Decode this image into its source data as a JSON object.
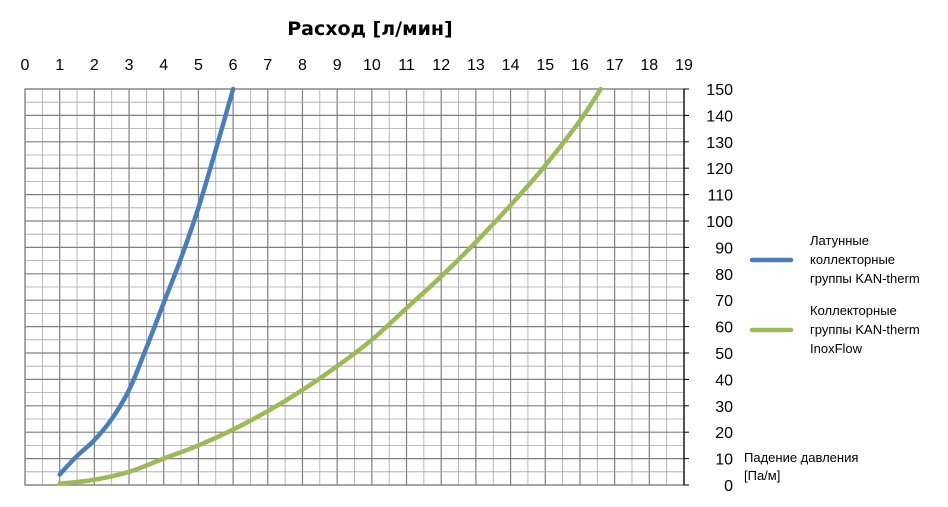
{
  "chart_data": {
    "type": "line",
    "title": "Расход [л/мин]",
    "xlabel": "Расход [л/мин]",
    "ylabel_lines": [
      "Падение давления",
      "[Па/м]"
    ],
    "xlim": [
      0,
      19
    ],
    "ylim": [
      0,
      150
    ],
    "x_ticks": [
      "0",
      "1",
      "2",
      "3",
      "4",
      "5",
      "6",
      "7",
      "8",
      "9",
      "10",
      "11",
      "12",
      "13",
      "14",
      "15",
      "16",
      "17",
      "18",
      "19"
    ],
    "y_ticks": [
      "0",
      "10",
      "20",
      "30",
      "40",
      "50",
      "60",
      "70",
      "80",
      "90",
      "100",
      "110",
      "120",
      "130",
      "140",
      "150"
    ],
    "grid": true,
    "legend_position": "right",
    "series": [
      {
        "name": "Латунные коллекторные группы KAN-therm",
        "legend_lines": [
          "Латунные",
          "коллекторные",
          "группы KAN-therm"
        ],
        "color": "#4a7ebb",
        "points": [
          [
            1,
            4
          ],
          [
            1.5,
            11
          ],
          [
            2,
            17
          ],
          [
            2.5,
            25
          ],
          [
            3,
            36
          ],
          [
            3.5,
            52
          ],
          [
            4,
            69
          ],
          [
            4.5,
            86
          ],
          [
            5,
            105
          ],
          [
            5.5,
            127
          ],
          [
            6,
            150
          ]
        ]
      },
      {
        "name": "Коллекторные группы KAN-therm InoxFlow",
        "legend_lines": [
          "Коллекторные",
          "группы KAN-therm",
          "InoxFlow"
        ],
        "color": "#9bbb59",
        "points": [
          [
            1,
            0.5
          ],
          [
            2,
            2
          ],
          [
            3,
            5
          ],
          [
            4,
            10
          ],
          [
            5,
            15
          ],
          [
            6,
            21
          ],
          [
            7,
            28
          ],
          [
            8,
            36
          ],
          [
            9,
            45
          ],
          [
            10,
            55
          ],
          [
            11,
            67
          ],
          [
            12,
            79
          ],
          [
            13,
            92
          ],
          [
            14,
            106
          ],
          [
            15,
            121
          ],
          [
            16,
            138
          ],
          [
            16.6,
            150
          ]
        ]
      }
    ]
  }
}
